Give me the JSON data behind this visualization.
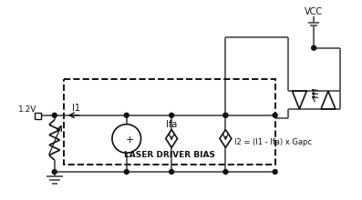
{
  "title": "LASER DRIVER BIAS",
  "vcc_label": "VCC",
  "v12_label": "1.2V",
  "i1_label": "I1",
  "ifa_label": "Ifa",
  "i2_label": "I2 = (I1 - Ifa) x Gapc",
  "lc": "#555555",
  "dc": "#111111"
}
